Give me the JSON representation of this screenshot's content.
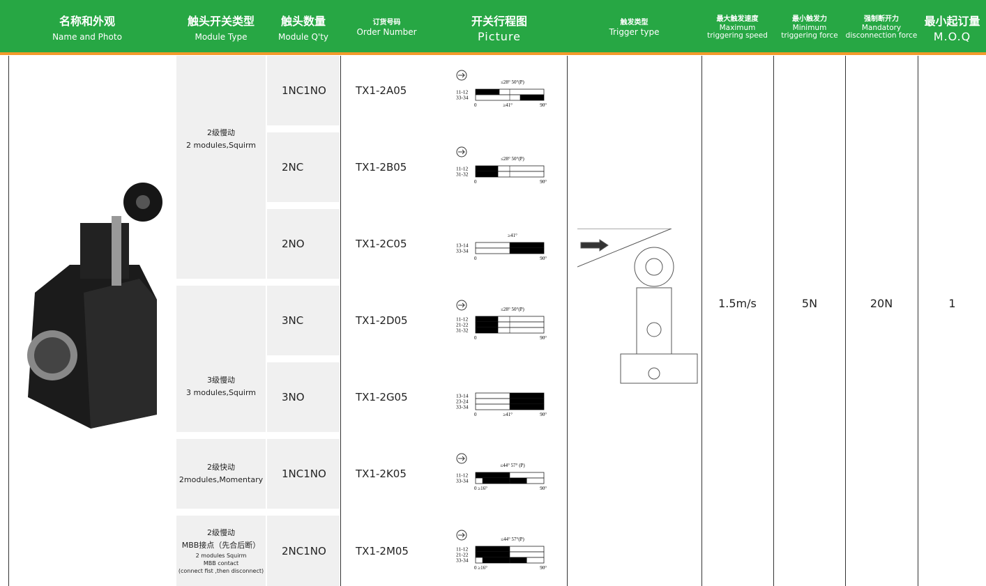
{
  "header": {
    "columns": [
      {
        "cn": "名称和外观",
        "en": [
          "Name and Photo"
        ]
      },
      {
        "cn": "触头开关类型",
        "en": [
          "Module Type"
        ]
      },
      {
        "cn": "触头数量",
        "en": [
          "Module Q'ty"
        ]
      },
      {
        "cn": "订货号码",
        "en": [
          "Order Number"
        ]
      },
      {
        "cn": "开关行程图",
        "en": [
          "Picture"
        ]
      },
      {
        "cn": "触发类型",
        "en": [
          "Trigger type"
        ]
      },
      {
        "cn": "最大触发速度",
        "en": [
          "Maximum",
          "triggering speed"
        ]
      },
      {
        "cn": "最小触发力",
        "en": [
          "Minimum",
          "triggering force"
        ]
      },
      {
        "cn": "强制断开力",
        "en": [
          "Mandatory",
          "disconnection force"
        ]
      },
      {
        "cn": "最小起订量",
        "en": [
          "M.O.Q"
        ]
      }
    ]
  },
  "module_groups": [
    {
      "lines": [
        "2级慢动",
        "2 modules,Squirm"
      ]
    },
    {
      "lines": [
        "3级慢动",
        "3 modules,Squirm"
      ]
    },
    {
      "lines": [
        "2级快动",
        "2modules,Momentary"
      ]
    },
    {
      "lines": [
        "2级慢动",
        "MBB接点（先合后断）",
        "2 modules Squirm",
        "MBB contact",
        "(connect fist ,then disconnect)"
      ]
    }
  ],
  "rows": [
    {
      "qty": "1NC1NO",
      "order": "TX1-2A05",
      "diagram": {
        "top": "≤28° 50°(P)",
        "contacts": [
          "11-12",
          "33-34"
        ],
        "bottom": [
          "0",
          "≥41°",
          "90°"
        ]
      }
    },
    {
      "qty": "2NC",
      "order": "TX1-2B05",
      "diagram": {
        "top": "≤28° 50°(P)",
        "contacts": [
          "11-12",
          "31-32"
        ],
        "bottom": [
          "0",
          "90°"
        ]
      }
    },
    {
      "qty": "2NO",
      "order": "TX1-2C05",
      "diagram": {
        "top": "≥41°",
        "contacts": [
          "13-14",
          "33-34"
        ],
        "bottom": [
          "0",
          "90°"
        ]
      }
    },
    {
      "qty": "3NC",
      "order": "TX1-2D05",
      "diagram": {
        "top": "≤28° 50°(P)",
        "contacts": [
          "11-12",
          "21-22",
          "31-32"
        ],
        "bottom": [
          "0",
          "90°"
        ]
      }
    },
    {
      "qty": "3NO",
      "order": "TX1-2G05",
      "diagram": {
        "contacts": [
          "13-14",
          "23-24",
          "33-34"
        ],
        "bottom": [
          "0",
          "≥41°",
          "90°"
        ]
      }
    },
    {
      "qty": "1NC1NO",
      "order": "TX1-2K05",
      "diagram": {
        "top": "≤44° 57° (P)",
        "contacts": [
          "11-12",
          "33-34"
        ],
        "bottom": [
          "0 ≥16°",
          "90°"
        ]
      }
    },
    {
      "qty": "2NC1NO",
      "order": "TX1-2M05",
      "diagram": {
        "top": "≤44° 57°(P)",
        "contacts": [
          "11-12",
          "21-22",
          "33-34"
        ],
        "bottom": [
          "0 ≥16°",
          "90°"
        ]
      }
    }
  ],
  "specs": {
    "speed": "1.5m/s",
    "min_force": "5N",
    "mandatory_force": "20N",
    "moq": "1"
  }
}
